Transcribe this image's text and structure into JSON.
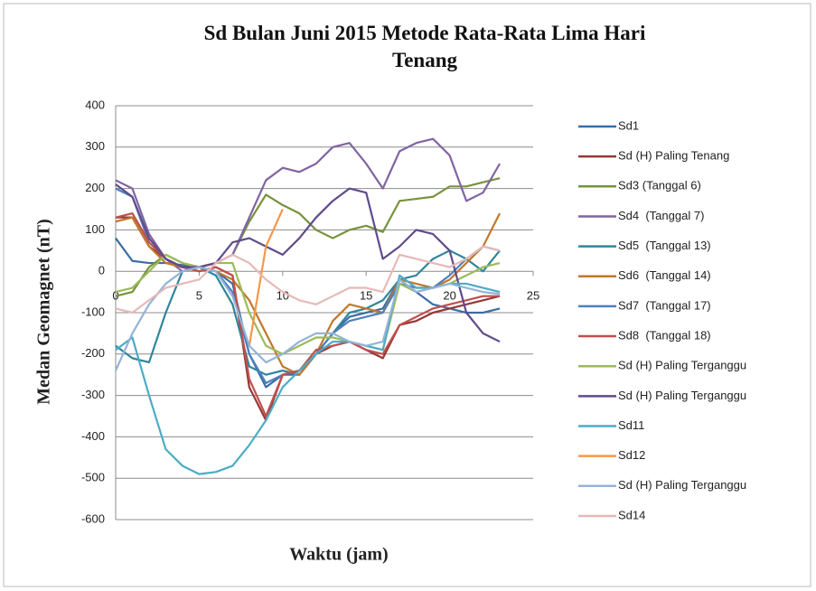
{
  "chart_data": {
    "type": "line",
    "title": "Sd Bulan Juni 2015 Metode Rata-Rata Lima Hari Tenang",
    "xlabel": "Waktu (jam)",
    "ylabel": "Medan Geomagnet (nT)",
    "x": [
      0,
      1,
      2,
      3,
      4,
      5,
      6,
      7,
      8,
      9,
      10,
      11,
      12,
      13,
      14,
      15,
      16,
      17,
      18,
      19,
      20,
      21,
      22,
      23
    ],
    "xlim": [
      0,
      25
    ],
    "xticks": [
      0,
      5,
      10,
      15,
      20,
      25
    ],
    "ylim": [
      -600,
      400
    ],
    "yticks": [
      -600,
      -500,
      -400,
      -300,
      -200,
      -100,
      0,
      100,
      200,
      300,
      400
    ],
    "grid": true,
    "legend": "right",
    "series": [
      {
        "name": "Sd1",
        "color": "#3a6ea5",
        "values": [
          80,
          25,
          20,
          20,
          15,
          10,
          0,
          -30,
          -200,
          -280,
          -250,
          -250,
          -200,
          -150,
          -110,
          -100,
          -90,
          -20,
          -50,
          -80,
          -90,
          -100,
          -100,
          -90
        ]
      },
      {
        "name": "Sd (H) Paling Tenang",
        "color": "#953735",
        "values": [
          130,
          130,
          60,
          30,
          10,
          0,
          10,
          -10,
          -280,
          -360,
          -250,
          -240,
          -200,
          -180,
          -170,
          -190,
          -210,
          -130,
          -120,
          -100,
          -90,
          -80,
          -70,
          -60
        ]
      },
      {
        "name": "Sd3 (Tanggal 6)",
        "color": "#77933c",
        "values": [
          -60,
          -50,
          10,
          40,
          20,
          10,
          20,
          40,
          120,
          185,
          160,
          140,
          100,
          80,
          100,
          110,
          95,
          170,
          175,
          180,
          205,
          205,
          215,
          225
        ]
      },
      {
        "name": "Sd4  (Tanggal 7)",
        "color": "#8064a2",
        "values": [
          220,
          200,
          90,
          30,
          0,
          10,
          20,
          40,
          130,
          220,
          250,
          240,
          260,
          300,
          310,
          260,
          200,
          290,
          310,
          320,
          280,
          170,
          190,
          260
        ]
      },
      {
        "name": "Sd5  (Tanggal 13)",
        "color": "#31859c",
        "values": [
          -180,
          -210,
          -220,
          -100,
          0,
          10,
          -10,
          -80,
          -230,
          -250,
          -240,
          -250,
          -200,
          -150,
          -100,
          -90,
          -70,
          -20,
          -10,
          30,
          50,
          30,
          0,
          50
        ]
      },
      {
        "name": "Sd6  (Tanggal 14)",
        "color": "#c0782a",
        "values": [
          120,
          130,
          60,
          20,
          10,
          10,
          0,
          -20,
          -70,
          -150,
          -230,
          -250,
          -200,
          -120,
          -80,
          -90,
          -100,
          -20,
          -30,
          -40,
          -20,
          20,
          60,
          140
        ]
      },
      {
        "name": "Sd7  (Tanggal 17)",
        "color": "#4f81bd",
        "values": [
          200,
          180,
          70,
          30,
          10,
          10,
          0,
          -50,
          -200,
          -270,
          -250,
          -240,
          -200,
          -150,
          -120,
          -110,
          -100,
          -30,
          -40,
          -40,
          -10,
          30,
          60,
          50
        ]
      },
      {
        "name": "Sd8  (Tanggal 18)",
        "color": "#c0504d",
        "values": [
          130,
          140,
          70,
          30,
          10,
          0,
          10,
          -10,
          -260,
          -350,
          -250,
          -240,
          -190,
          -180,
          -170,
          -190,
          -200,
          -130,
          -110,
          -90,
          -80,
          -70,
          -60,
          -60
        ]
      },
      {
        "name": "Sd (H) Paling Terganggu",
        "color": "#9bbb59",
        "values": [
          -50,
          -40,
          0,
          40,
          20,
          10,
          20,
          20,
          -100,
          -180,
          -200,
          -180,
          -160,
          -160,
          -170,
          -180,
          -190,
          -30,
          -50,
          -40,
          -30,
          -10,
          10,
          20
        ]
      },
      {
        "name": "Sd (H) Paling Terganggu",
        "color": "#5f4b8b",
        "values": [
          210,
          180,
          80,
          30,
          10,
          10,
          20,
          70,
          80,
          60,
          40,
          80,
          130,
          170,
          200,
          190,
          30,
          60,
          100,
          90,
          50,
          -100,
          -150,
          -170
        ]
      },
      {
        "name": "Sd11",
        "color": "#4bacc6",
        "values": [
          -190,
          -160,
          -300,
          -430,
          -470,
          -490,
          -485,
          -470,
          -420,
          -360,
          -280,
          -240,
          -200,
          -170,
          -170,
          -180,
          -190,
          -10,
          -40,
          -40,
          -30,
          -30,
          -40,
          -50
        ]
      },
      {
        "name": "Sd12",
        "color": "#f79646",
        "values": [
          null,
          null,
          null,
          null,
          null,
          null,
          null,
          null,
          -180,
          60,
          150,
          null,
          null,
          null,
          null,
          null,
          null,
          null,
          null,
          null,
          null,
          null,
          null,
          null
        ]
      },
      {
        "name": "Sd (H) Paling Terganggu",
        "color": "#95b3d7",
        "values": [
          -240,
          -150,
          -80,
          -30,
          0,
          10,
          0,
          -60,
          -180,
          -220,
          -200,
          -170,
          -150,
          -150,
          -170,
          -180,
          -170,
          -20,
          -50,
          -40,
          -30,
          -40,
          -50,
          -55
        ]
      },
      {
        "name": "Sd14",
        "color": "#e6b9b8",
        "values": [
          -90,
          -100,
          -70,
          -40,
          -30,
          -20,
          20,
          40,
          20,
          -20,
          -50,
          -70,
          -80,
          -60,
          -40,
          -40,
          -50,
          40,
          30,
          20,
          10,
          30,
          60,
          50
        ]
      }
    ]
  }
}
